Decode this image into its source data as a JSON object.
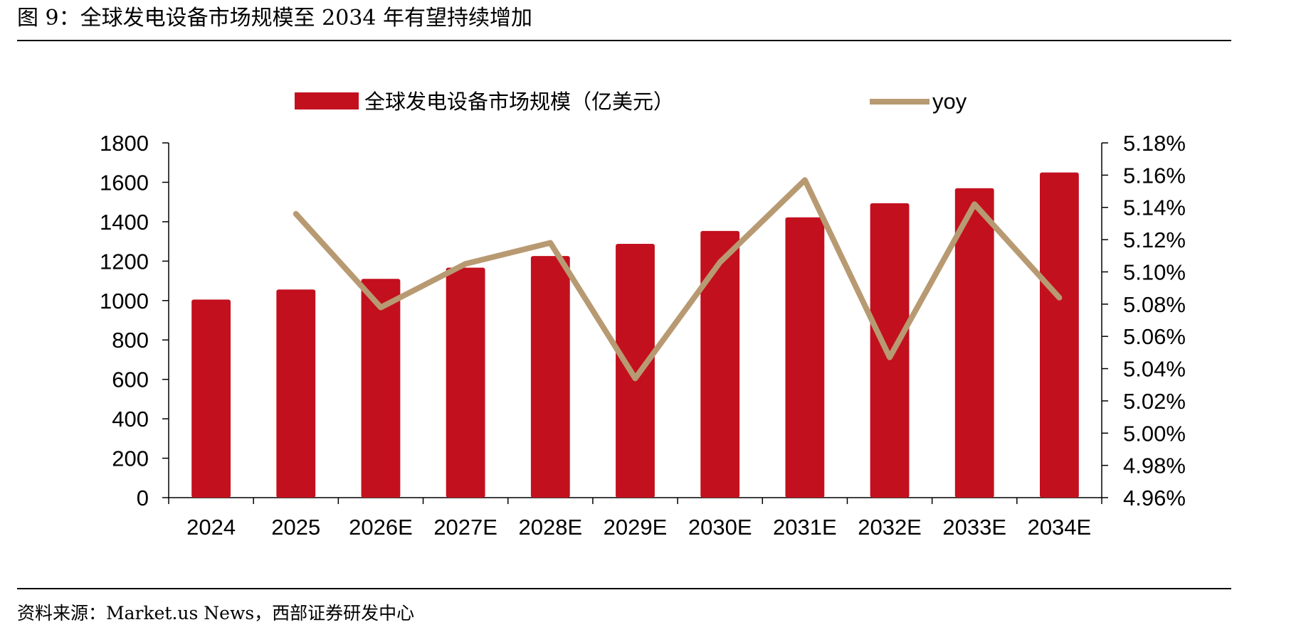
{
  "figure": {
    "title": "图 9：全球发电设备市场规模至 2034 年有望持续增加",
    "source": "资料来源：Market.us News，西部证券研发中心"
  },
  "chart_data": {
    "type": "bar",
    "categories": [
      "2024",
      "2025",
      "2026E",
      "2027E",
      "2028E",
      "2029E",
      "2030E",
      "2031E",
      "2032E",
      "2033E",
      "2034E"
    ],
    "series": [
      {
        "name": "全球发电设备市场规模（亿美元）",
        "type": "bar",
        "axis": "left",
        "color": "#C3101E",
        "values": [
          1005,
          1056,
          1110,
          1167,
          1226,
          1288,
          1353,
          1422,
          1494,
          1570,
          1650
        ]
      },
      {
        "name": "yoy",
        "type": "line",
        "axis": "right",
        "color": "#B89A72",
        "values": [
          null,
          5.136,
          5.078,
          5.105,
          5.118,
          5.034,
          5.106,
          5.157,
          5.047,
          5.142,
          5.084
        ]
      }
    ],
    "y_left": {
      "min": 0,
      "max": 1800,
      "step": 200,
      "ticks": [
        "0",
        "200",
        "400",
        "600",
        "800",
        "1000",
        "1200",
        "1400",
        "1600",
        "1800"
      ]
    },
    "y_right": {
      "min": 4.96,
      "max": 5.18,
      "step": 0.02,
      "ticks": [
        "4.96%",
        "4.98%",
        "5.00%",
        "5.02%",
        "5.04%",
        "5.06%",
        "5.08%",
        "5.10%",
        "5.12%",
        "5.14%",
        "5.16%",
        "5.18%"
      ]
    },
    "legend": {
      "placement": "top-center"
    },
    "grid": false
  }
}
